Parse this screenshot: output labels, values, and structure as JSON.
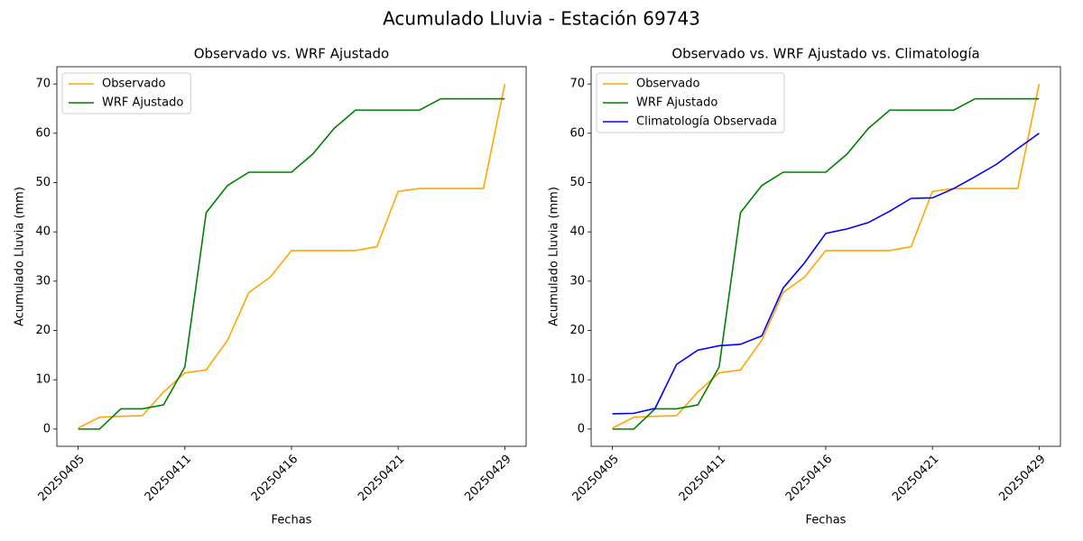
{
  "title": "Acumulado Lluvia - Estación 69743",
  "chart_data": [
    {
      "type": "line",
      "title": "Observado vs. WRF Ajustado",
      "x_label": "Fechas",
      "y_label": "Acumulado Lluvia (mm)",
      "categories": [
        "20250405",
        null,
        null,
        null,
        null,
        "20250411",
        null,
        null,
        null,
        null,
        "20250416",
        null,
        null,
        null,
        null,
        "20250421",
        null,
        null,
        null,
        null,
        "20250429"
      ],
      "series": [
        {
          "name": "Observado",
          "color": "orange",
          "values": [
            0.2,
            2.4,
            2.6,
            2.7,
            7.5,
            11.4,
            12,
            18,
            27.7,
            30.8,
            36.2,
            36.2,
            36.2,
            36.2,
            37,
            48.2,
            48.8,
            48.8,
            48.8,
            48.8,
            70
          ]
        },
        {
          "name": "WRF Ajustado",
          "color": "green",
          "values": [
            0,
            0,
            4.1,
            4.1,
            4.9,
            12.6,
            43.9,
            49.4,
            52.1,
            52.1,
            52.1,
            55.8,
            61,
            64.7,
            64.7,
            64.7,
            64.7,
            67,
            67,
            67,
            67
          ]
        }
      ],
      "ylim": [
        -3.5,
        73.5
      ],
      "yticks": [
        0,
        10,
        20,
        30,
        40,
        50,
        60,
        70
      ],
      "legend": "upper left"
    },
    {
      "type": "line",
      "title": "Observado vs. WRF Ajustado vs. Climatología",
      "x_label": "Fechas",
      "y_label": "Acumulado Lluvia (mm)",
      "categories": [
        "20250405",
        null,
        null,
        null,
        null,
        "20250411",
        null,
        null,
        null,
        null,
        "20250416",
        null,
        null,
        null,
        null,
        "20250421",
        null,
        null,
        null,
        null,
        "20250429"
      ],
      "series": [
        {
          "name": "Observado",
          "color": "orange",
          "values": [
            0.2,
            2.4,
            2.6,
            2.7,
            7.5,
            11.4,
            12,
            18,
            27.7,
            30.8,
            36.2,
            36.2,
            36.2,
            36.2,
            37,
            48.2,
            48.8,
            48.8,
            48.8,
            48.8,
            70
          ]
        },
        {
          "name": "WRF Ajustado",
          "color": "green",
          "values": [
            0,
            0,
            4.1,
            4.1,
            4.9,
            12.6,
            43.9,
            49.4,
            52.1,
            52.1,
            52.1,
            55.8,
            61,
            64.7,
            64.7,
            64.7,
            64.7,
            67,
            67,
            67,
            67
          ]
        },
        {
          "name": "Climatología Observada",
          "color": "blue",
          "values": [
            3.1,
            3.2,
            4.2,
            13.1,
            16,
            16.9,
            17.2,
            18.9,
            28.6,
            33.7,
            39.7,
            40.6,
            41.9,
            44.2,
            46.8,
            46.9,
            48.8,
            51.2,
            53.7,
            56.9,
            60
          ]
        }
      ],
      "ylim": [
        -3.5,
        73.5
      ],
      "yticks": [
        0,
        10,
        20,
        30,
        40,
        50,
        60,
        70
      ],
      "legend": "upper left"
    }
  ]
}
